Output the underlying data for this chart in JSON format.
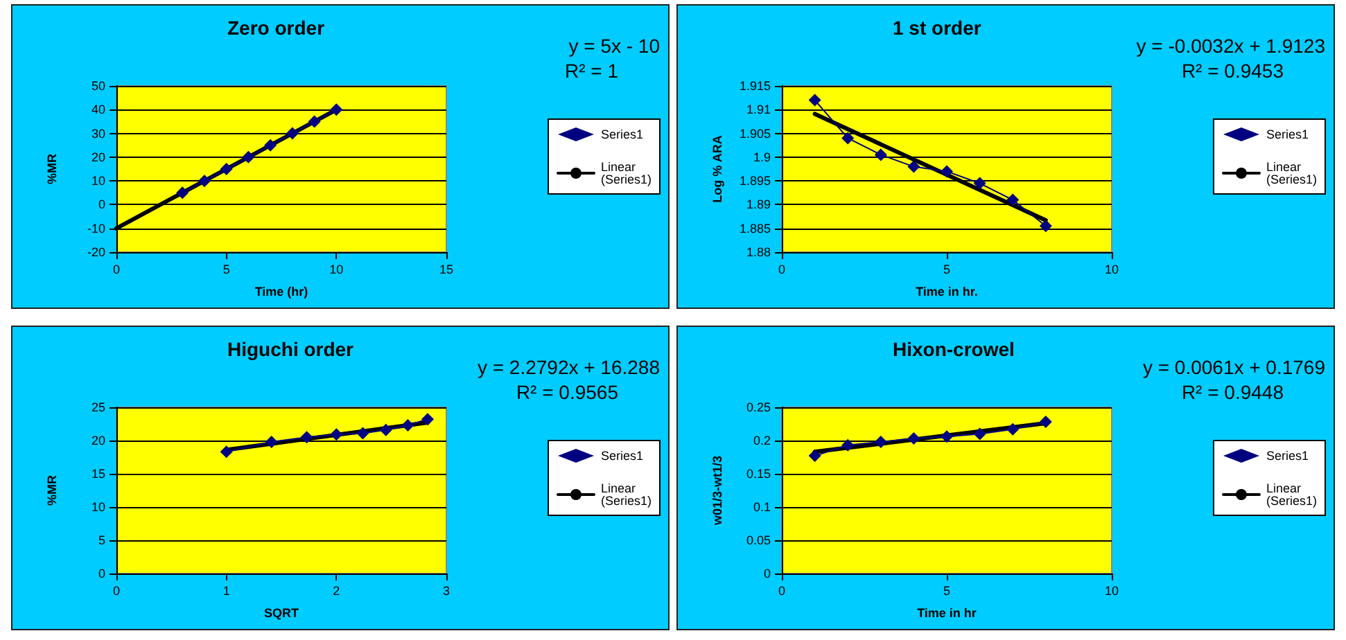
{
  "chart_data": [
    {
      "type": "line",
      "title": "Zero order",
      "xlabel": "Time (hr)",
      "ylabel": "%MR",
      "annotations": [
        "y = 5x - 10",
        "R² = 1"
      ],
      "xlim": [
        0,
        15
      ],
      "xticks": [
        0,
        5,
        10,
        15
      ],
      "ylim": [
        -20,
        50
      ],
      "yticks": [
        -20,
        -10,
        0,
        10,
        20,
        30,
        40,
        50
      ],
      "grid": "y",
      "legend": "right",
      "marker": "diamond",
      "series": [
        {
          "name": "Series1",
          "color": "#000080",
          "x": [
            3,
            4,
            5,
            6,
            7,
            8,
            9,
            10
          ],
          "values": [
            5,
            10,
            15,
            20,
            25,
            30,
            35,
            40
          ]
        },
        {
          "name": "Linear (Series1)",
          "color": "#000000",
          "marker": "none",
          "x": [
            0,
            10
          ],
          "values": [
            -10,
            40
          ]
        }
      ]
    },
    {
      "type": "line",
      "title": "1 st order",
      "xlabel": "Time in hr.",
      "ylabel": "Log % ARA",
      "annotations": [
        "y = -0.0032x + 1.9123",
        "R² = 0.9453"
      ],
      "xlim": [
        0,
        10
      ],
      "xticks": [
        0,
        5,
        10
      ],
      "ylim": [
        1.88,
        1.915
      ],
      "yticks": [
        1.88,
        1.885,
        1.89,
        1.895,
        1.9,
        1.905,
        1.91,
        1.915
      ],
      "grid": "y",
      "legend": "right",
      "marker": "diamond",
      "series": [
        {
          "name": "Series1",
          "color": "#000080",
          "x": [
            1,
            2,
            3,
            4,
            5,
            6,
            7,
            8
          ],
          "values": [
            1.912,
            1.904,
            1.9005,
            1.898,
            1.897,
            1.8945,
            1.891,
            1.8855
          ]
        },
        {
          "name": "Linear (Series1)",
          "color": "#000000",
          "marker": "none",
          "x": [
            1,
            8
          ],
          "values": [
            1.9091,
            1.8867
          ]
        }
      ]
    },
    {
      "type": "line",
      "title": "Higuchi order",
      "xlabel": "SQRT",
      "ylabel": "%MR",
      "annotations": [
        "y = 2.2792x + 16.288",
        "R² = 0.9565"
      ],
      "xlim": [
        0,
        3
      ],
      "xticks": [
        0,
        1,
        2,
        3
      ],
      "ylim": [
        0,
        25
      ],
      "yticks": [
        0,
        5,
        10,
        15,
        20,
        25
      ],
      "grid": "y",
      "legend": "right",
      "marker": "diamond",
      "series": [
        {
          "name": "Series1",
          "color": "#000080",
          "x": [
            1,
            1.41,
            1.73,
            2,
            2.24,
            2.45,
            2.65,
            2.83
          ],
          "values": [
            18.3,
            19.8,
            20.5,
            20.9,
            21.1,
            21.6,
            22.3,
            23.2
          ]
        },
        {
          "name": "Linear (Series1)",
          "color": "#000000",
          "marker": "none",
          "x": [
            1,
            2.83
          ],
          "values": [
            18.6,
            22.7
          ]
        }
      ]
    },
    {
      "type": "line",
      "title": "Hixon-crowel",
      "xlabel": "Time in hr",
      "ylabel": "w01/3-wt1/3",
      "annotations": [
        "y = 0.0061x + 0.1769",
        "R² = 0.9448"
      ],
      "xlim": [
        0,
        10
      ],
      "xticks": [
        0,
        5,
        10
      ],
      "ylim": [
        0,
        0.25
      ],
      "yticks": [
        0,
        0.05,
        0.1,
        0.15,
        0.2,
        0.25
      ],
      "grid": "y",
      "legend": "right",
      "marker": "diamond",
      "series": [
        {
          "name": "Series1",
          "color": "#000080",
          "x": [
            1,
            2,
            3,
            4,
            5,
            6,
            7,
            8
          ],
          "values": [
            0.177,
            0.193,
            0.198,
            0.203,
            0.206,
            0.21,
            0.217,
            0.228
          ]
        },
        {
          "name": "Linear (Series1)",
          "color": "#000000",
          "marker": "none",
          "x": [
            1,
            8
          ],
          "values": [
            0.183,
            0.226
          ]
        }
      ]
    }
  ]
}
